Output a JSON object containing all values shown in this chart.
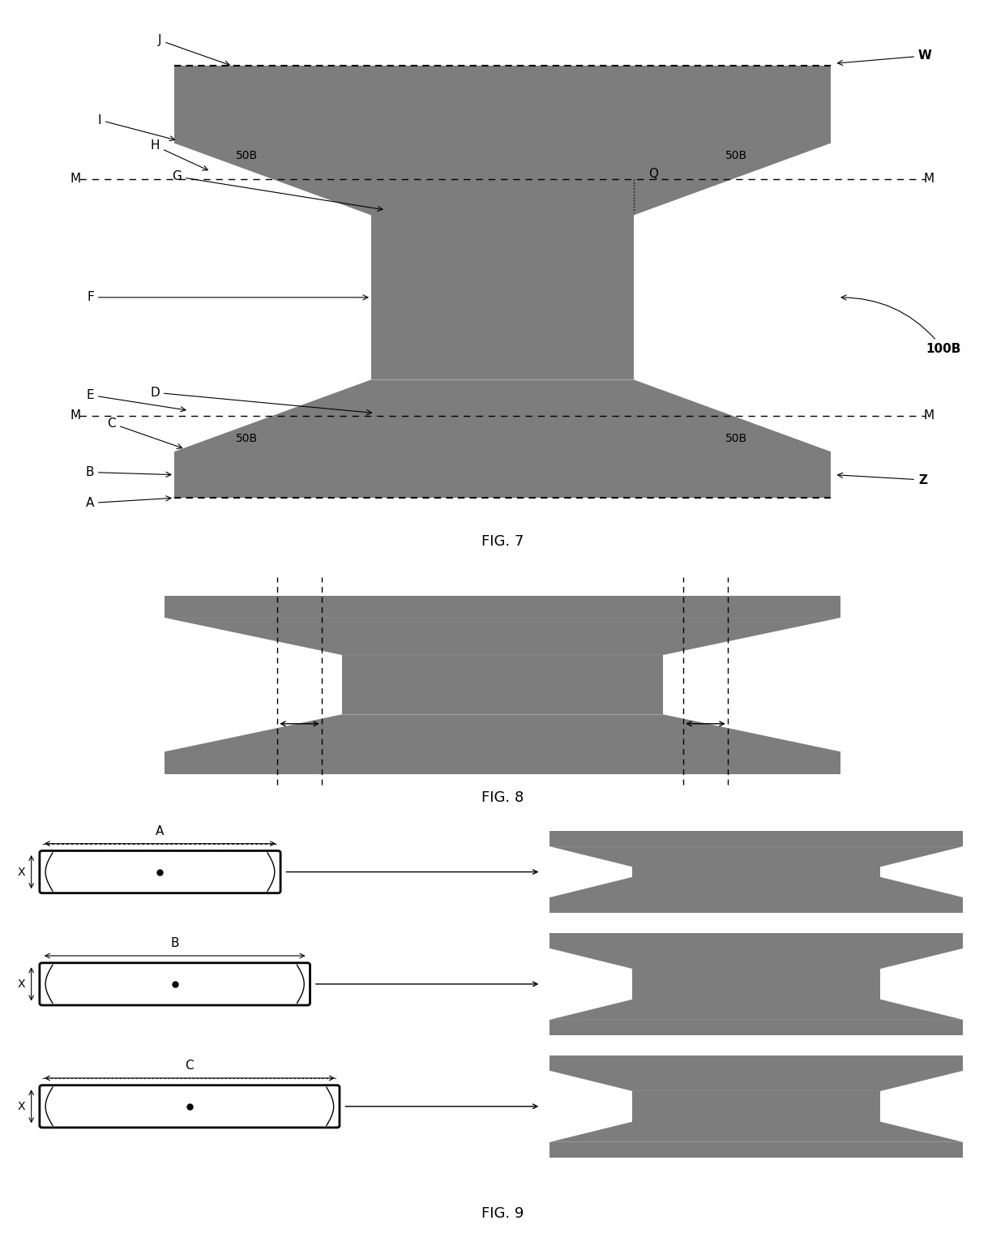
{
  "gray": "#7d7d7d",
  "white": "#ffffff",
  "black": "#000000",
  "fig7_title": "FIG. 7",
  "fig8_title": "FIG. 8",
  "fig9_title": "FIG. 9",
  "font_size": 11,
  "title_font_size": 13
}
